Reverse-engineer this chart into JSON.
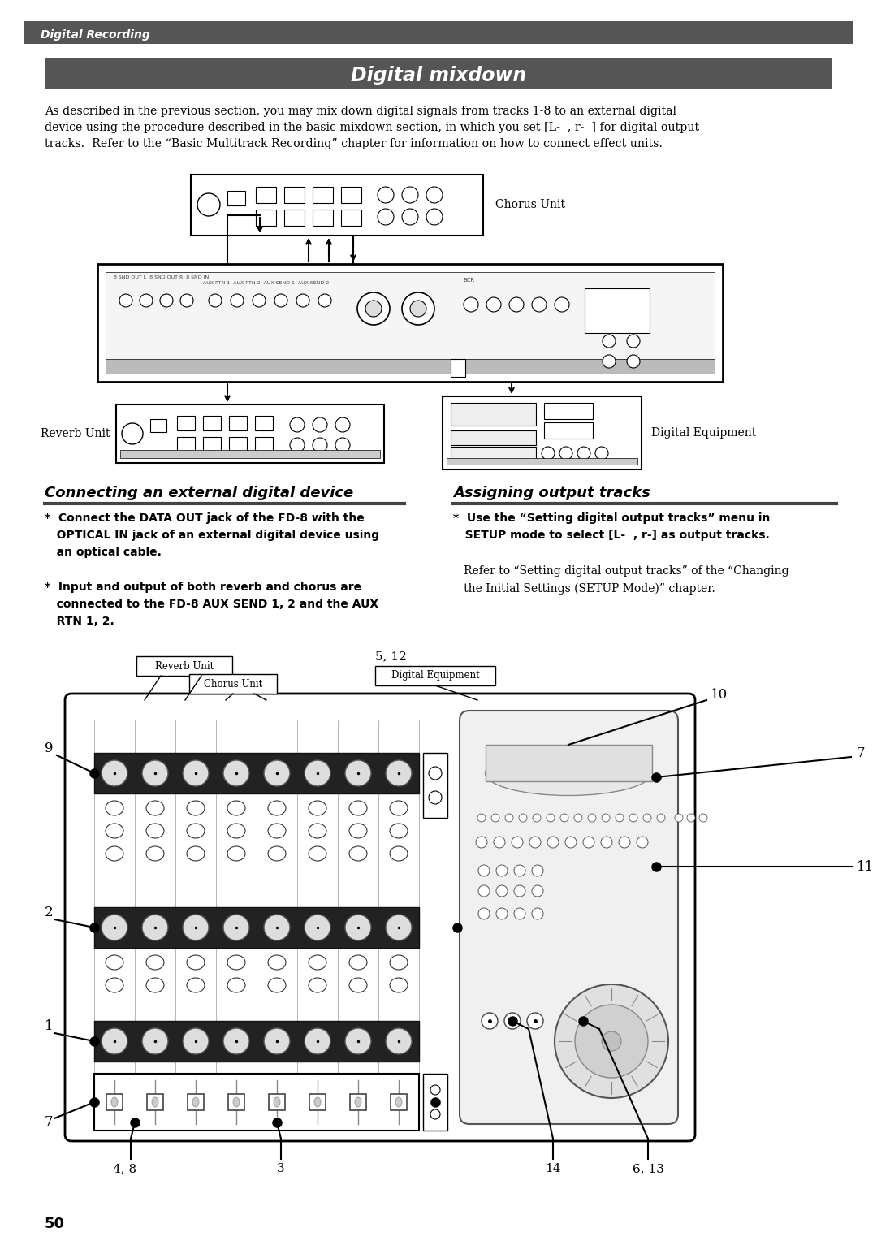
{
  "page_bg": "#ffffff",
  "header_bar_color": "#555555",
  "header_text": "Digital Recording",
  "header_text_color": "#ffffff",
  "title_bar_color": "#555555",
  "title_text": "Digital mixdown",
  "title_text_color": "#ffffff",
  "body_text_1": "As described in the previous section, you may mix down digital signals from tracks 1-8 to an external digital\ndevice using the procedure described in the basic mixdown section, in which you set [L-  , r-  ] for digital output\ntracks.  Refer to the “Basic Multitrack Recording” chapter for information on how to connect effect units.",
  "section_left_title": "Connecting an external digital device",
  "section_right_title": "Assigning output tracks",
  "section_left_bullet1": "*  Connect the DATA OUT jack of the FD-8 with the\n   OPTICAL IN jack of an external digital device using\n   an optical cable.",
  "section_left_bullet2": "*  Input and output of both reverb and chorus are\n   connected to the FD-8 AUX SEND 1, 2 and the AUX\n   RTN 1, 2.",
  "section_right_bullet1_bold": "*  Use the “Setting digital output tracks” menu in\n   SETUP mode to select [L-  , r-] as output tracks.",
  "section_right_bullet1_normal": "   Refer to “Setting digital output tracks” of the “Changing\n   the Initial Settings (SETUP Mode)” chapter.",
  "page_number": "50",
  "line_color": "#000000",
  "diagram_line_color": "#000000",
  "diagram_fill_color": "#f0f0f0",
  "dark_fill": "#888888"
}
